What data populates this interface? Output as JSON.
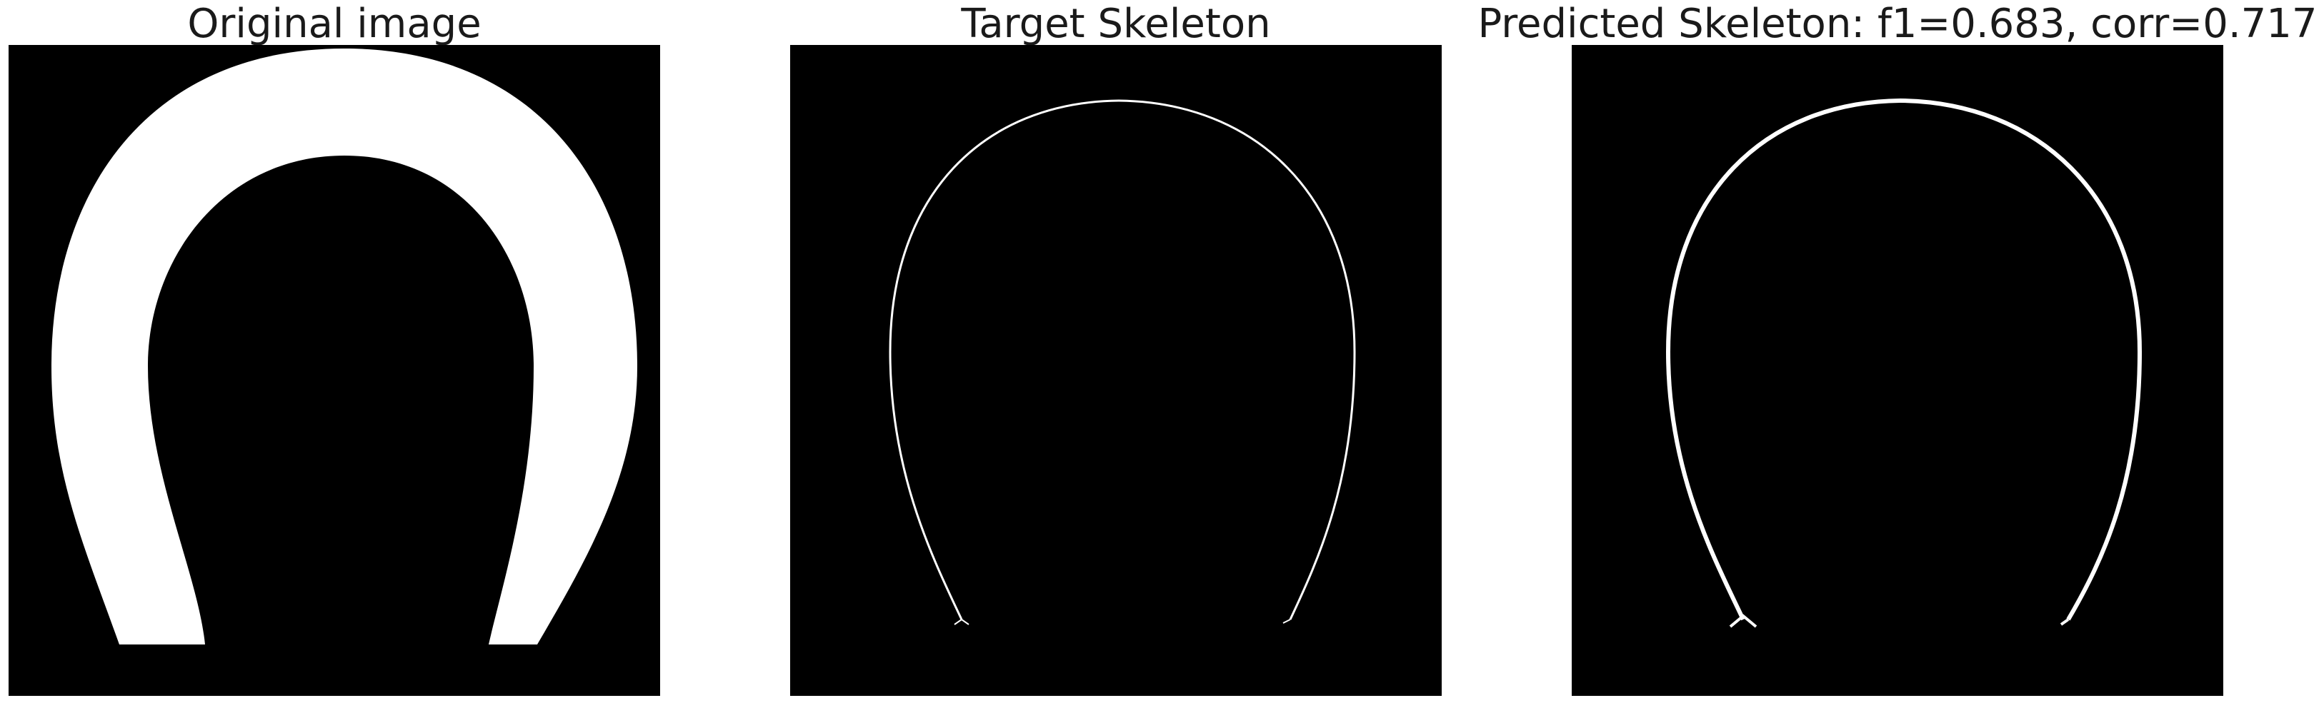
{
  "panels": [
    {
      "title": "Original image"
    },
    {
      "title": "Target Skeleton"
    },
    {
      "title": "Predicted Skeleton: f1=0.683, corr=0.717"
    }
  ],
  "colors": {
    "background": "#000000",
    "foreground": "#ffffff"
  }
}
